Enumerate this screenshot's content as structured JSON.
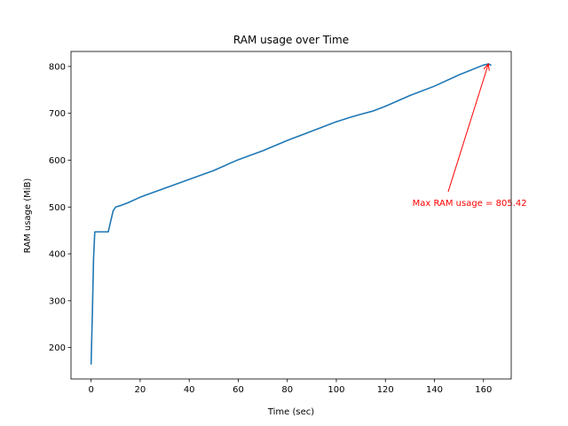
{
  "chart_data": {
    "type": "line",
    "title": "RAM usage over Time",
    "xlabel": "Time (sec)",
    "ylabel": "RAM usage (MiB)",
    "xlim": [
      -8.2,
      171.3
    ],
    "ylim": [
      133,
      832
    ],
    "xticks": [
      0,
      20,
      40,
      60,
      80,
      100,
      120,
      140,
      160
    ],
    "yticks": [
      200,
      300,
      400,
      500,
      600,
      700,
      800
    ],
    "grid": false,
    "series": [
      {
        "color": "#1f77b4",
        "x": [
          0,
          0.5,
          1,
          1.5,
          2,
          4,
          6,
          7,
          8,
          9,
          10,
          12,
          15,
          20,
          30,
          40,
          50,
          60,
          70,
          80,
          90,
          100,
          106,
          110,
          115,
          120,
          130,
          140,
          150,
          160,
          162,
          163
        ],
        "y": [
          165,
          270,
          390,
          447,
          447,
          447,
          447,
          447,
          470,
          492,
          500,
          503,
          509,
          521,
          540,
          559,
          578,
          601,
          620,
          642,
          662,
          682,
          692,
          698,
          705,
          715,
          738,
          758,
          782,
          803,
          805.42,
          803
        ]
      }
    ],
    "annotations": [
      {
        "text": "Max RAM usage = 805.42",
        "color": "#ff0000",
        "point": [
          162,
          805.42
        ],
        "text_pos": [
          131,
          510
        ]
      }
    ]
  }
}
